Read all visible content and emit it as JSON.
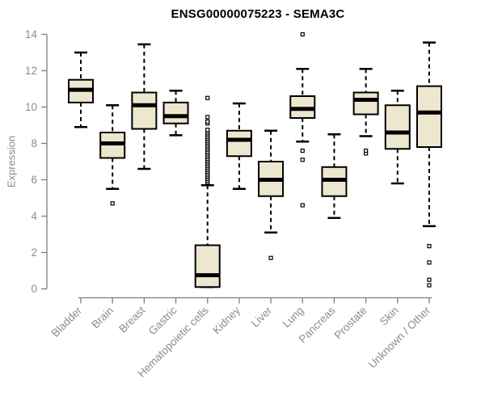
{
  "title": "ENSG00000075223 - SEMA3C",
  "chart_data": {
    "type": "boxplot",
    "title": "ENSG00000075223 - SEMA3C",
    "xlabel": "",
    "ylabel": "Expression",
    "ylim": [
      0,
      14
    ],
    "yticks": [
      0,
      2,
      4,
      6,
      8,
      10,
      12,
      14
    ],
    "grid": false,
    "legend": "none",
    "categories": [
      "Bladder",
      "Brain",
      "Breast",
      "Gastric",
      "Hematopoietic cells",
      "Kidney",
      "Liver",
      "Lung",
      "Pancreas",
      "Prostate",
      "Skin",
      "Unknown / Other"
    ],
    "boxes": [
      {
        "category": "Bladder",
        "whisker_low": 8.9,
        "q1": 10.25,
        "median": 10.95,
        "q3": 11.5,
        "whisker_high": 13.0,
        "outliers": []
      },
      {
        "category": "Brain",
        "whisker_low": 5.5,
        "q1": 7.2,
        "median": 8.0,
        "q3": 8.6,
        "whisker_high": 10.1,
        "outliers": [
          4.7
        ]
      },
      {
        "category": "Breast",
        "whisker_low": 6.6,
        "q1": 8.8,
        "median": 10.1,
        "q3": 10.8,
        "whisker_high": 13.45,
        "outliers": []
      },
      {
        "category": "Gastric",
        "whisker_low": 8.45,
        "q1": 9.1,
        "median": 9.5,
        "q3": 10.25,
        "whisker_high": 10.9,
        "outliers": []
      },
      {
        "category": "Hematopoietic cells",
        "whisker_low": 0.1,
        "q1": 0.1,
        "median": 0.75,
        "q3": 2.4,
        "whisker_high": 5.7,
        "outliers": [
          5.85,
          5.95,
          6.05,
          6.15,
          6.25,
          6.35,
          6.45,
          6.55,
          6.65,
          6.75,
          6.85,
          6.95,
          7.05,
          7.15,
          7.25,
          7.35,
          7.45,
          7.55,
          7.65,
          7.75,
          7.85,
          7.95,
          8.05,
          8.15,
          8.25,
          8.35,
          8.45,
          8.55,
          8.65,
          8.75,
          9.1,
          9.2,
          9.45,
          10.5
        ]
      },
      {
        "category": "Kidney",
        "whisker_low": 5.5,
        "q1": 7.3,
        "median": 8.2,
        "q3": 8.7,
        "whisker_high": 10.2,
        "outliers": []
      },
      {
        "category": "Liver",
        "whisker_low": 3.1,
        "q1": 5.1,
        "median": 6.0,
        "q3": 7.0,
        "whisker_high": 8.7,
        "outliers": [
          1.7
        ]
      },
      {
        "category": "Lung",
        "whisker_low": 8.1,
        "q1": 9.4,
        "median": 9.9,
        "q3": 10.6,
        "whisker_high": 12.1,
        "outliers": [
          14.0,
          7.6,
          7.1,
          4.6
        ]
      },
      {
        "category": "Pancreas",
        "whisker_low": 3.9,
        "q1": 5.1,
        "median": 6.0,
        "q3": 6.7,
        "whisker_high": 8.5,
        "outliers": []
      },
      {
        "category": "Prostate",
        "whisker_low": 8.4,
        "q1": 9.6,
        "median": 10.4,
        "q3": 10.8,
        "whisker_high": 12.1,
        "outliers": [
          7.45,
          7.6
        ]
      },
      {
        "category": "Skin",
        "whisker_low": 5.8,
        "q1": 7.7,
        "median": 8.6,
        "q3": 10.1,
        "whisker_high": 10.9,
        "outliers": []
      },
      {
        "category": "Unknown / Other",
        "whisker_low": 3.45,
        "q1": 7.8,
        "median": 9.7,
        "q3": 11.15,
        "whisker_high": 13.55,
        "outliers": [
          2.35,
          1.45,
          0.5,
          0.2
        ]
      }
    ],
    "colors": {
      "box_fill": "#ECE7CE",
      "box_border": "#000000",
      "median": "#000000",
      "whisker": "#000000",
      "outlier": "#000000",
      "axis_line": "#7d7d7d",
      "axis_text": "#8c8c8c",
      "title_text": "#000000",
      "background": "#ffffff"
    }
  }
}
